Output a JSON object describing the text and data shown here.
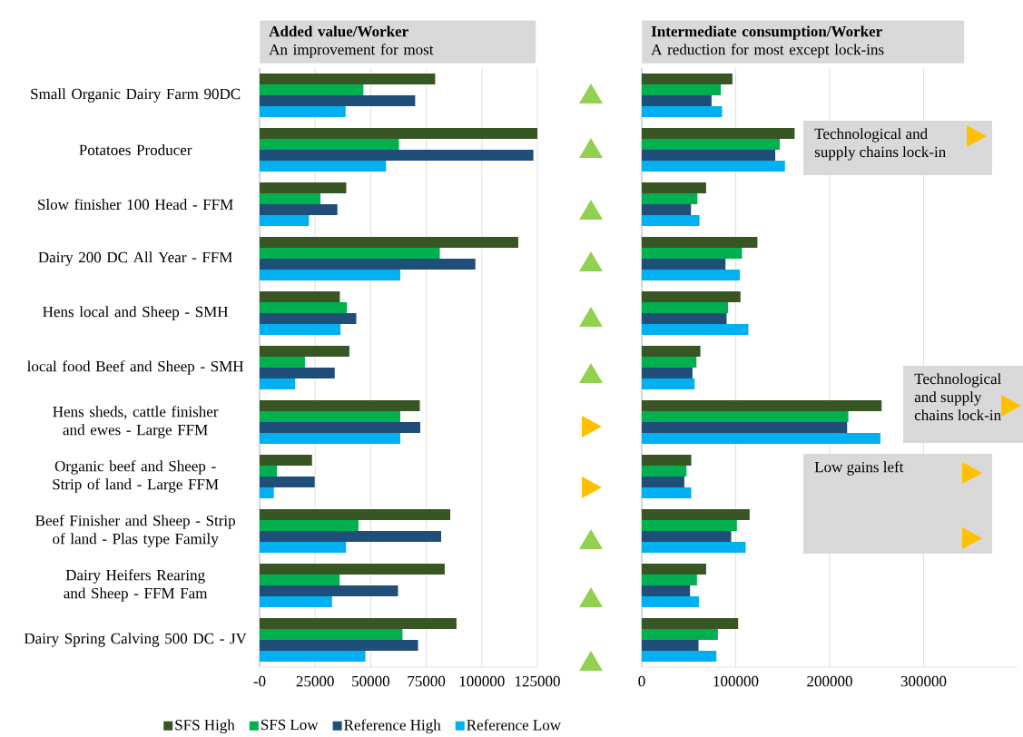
{
  "chart_data": [
    {
      "type": "bar",
      "orientation": "horizontal",
      "title": "Added value/Worker",
      "subtitle": "An improvement for most",
      "categories": [
        "Small Organic Dairy Farm 90DC",
        "Potatoes Producer",
        "Slow finisher 100 Head - FFM",
        "Dairy 200 DC All Year - FFM",
        "Hens local and Sheep - SMH",
        "local food Beef and Sheep - SMH",
        "Hens sheds, cattle finisher and ewes - Large FFM",
        "Organic beef and Sheep - Strip of land - Large FFM",
        "Beef Finisher and Sheep - Strip of land - Plas type Family",
        "Dairy Heifers Rearing and Sheep - FFM Fam",
        "Dairy Spring Calving 500 DC - JV"
      ],
      "series": [
        {
          "name": "SFS High",
          "color": "#375623",
          "values": [
            79000,
            125000,
            39000,
            116400,
            36100,
            40400,
            72100,
            23600,
            85800,
            83300,
            88600
          ]
        },
        {
          "name": "SFS Low",
          "color": "#00b050",
          "values": [
            46700,
            62700,
            27400,
            81100,
            39300,
            20400,
            63300,
            7800,
            44500,
            36000,
            64300
          ]
        },
        {
          "name": "Reference High",
          "color": "#1f4e79",
          "values": [
            70000,
            123200,
            35000,
            97100,
            43500,
            33800,
            72300,
            24800,
            81700,
            62300,
            71300
          ]
        },
        {
          "name": "Reference Low",
          "color": "#00b0f0",
          "values": [
            38700,
            56900,
            22200,
            63300,
            36400,
            16000,
            63300,
            6400,
            38900,
            32600,
            47600
          ]
        }
      ],
      "xlim": [
        0,
        125000
      ],
      "xticks": [
        {
          "value": 0,
          "label": "-0"
        },
        25000,
        50000,
        75000,
        100000,
        125000
      ],
      "grid": "x",
      "legend": "bottom"
    },
    {
      "type": "bar",
      "orientation": "horizontal",
      "title": "Intermediate consumption/Worker",
      "subtitle": "A reduction for most except lock-ins",
      "categories": [
        null,
        null,
        null,
        null,
        null,
        null,
        null,
        null,
        null,
        null,
        null
      ],
      "series": [
        {
          "color": "#375623",
          "values": [
            96500,
            162700,
            68500,
            123100,
            105100,
            62400,
            255300,
            52700,
            114800,
            68500,
            102600
          ]
        },
        {
          "color": "#00b050",
          "values": [
            84200,
            146900,
            59200,
            106700,
            91900,
            58200,
            219900,
            47600,
            101300,
            58800,
            81000
          ]
        },
        {
          "color": "#1f4e79",
          "values": [
            74300,
            142100,
            52400,
            89100,
            90300,
            54000,
            218600,
            45300,
            95200,
            51400,
            60400
          ]
        },
        {
          "color": "#00b0f0",
          "values": [
            85500,
            152400,
            61400,
            104500,
            113500,
            56300,
            254000,
            52700,
            110600,
            60800,
            79400
          ]
        }
      ],
      "xlim": [
        0,
        400000
      ],
      "xticks": [
        0,
        100000,
        200000,
        300000
      ],
      "grid": "x",
      "tick_labels": "x",
      "annotations": [
        "Technological and supply chains lock-in",
        "Technological and supply chains lock-in",
        "Low gains left"
      ]
    }
  ]
}
